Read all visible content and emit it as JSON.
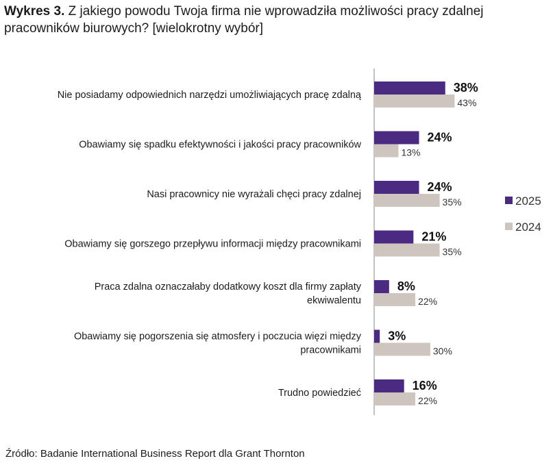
{
  "title": {
    "prefix": "Wykres 3.",
    "text": "Z jakiego powodu Twoja firma nie wprowadziła możliwości pracy zdalnej pracowników biurowych? [wielokrotny wybór]"
  },
  "source": "Źródło: Badanie International Business Report dla Grant Thornton",
  "colors": {
    "series_2025": "#4b2a82",
    "series_2024": "#cdc5be",
    "axis": "#9a9a9a"
  },
  "chart_data": {
    "type": "bar",
    "orientation": "horizontal",
    "title": "Z jakiego powodu Twoja firma nie wprowadziła możliwości pracy zdalnej pracowników biurowych? [wielokrotny wybór]",
    "xlabel": "",
    "ylabel": "",
    "xlim": [
      0,
      100
    ],
    "grid": false,
    "legend_position": "right",
    "categories": [
      [
        "Nie posiadamy odpowiednich narzędzi umożliwiających pracę zdalną"
      ],
      [
        "Obawiamy się spadku efektywności i jakości pracy pracowników"
      ],
      [
        "Nasi pracownicy nie wyrażali chęci pracy zdalnej"
      ],
      [
        "Obawiamy się gorszego przepływu informacji między pracownikami"
      ],
      [
        "Praca zdalna oznaczałaby dodatkowy koszt dla firmy zapłaty",
        "ekwiwalentu"
      ],
      [
        "Obawiamy się pogorszenia się atmosfery i poczucia więzi między",
        "pracownikami"
      ],
      [
        "Trudno powiedzieć"
      ]
    ],
    "series": [
      {
        "name": "2025",
        "values": [
          38,
          24,
          24,
          21,
          8,
          3,
          16
        ],
        "labels": [
          "38%",
          "24%",
          "24%",
          "21%",
          "8%",
          "3%",
          "16%"
        ]
      },
      {
        "name": "2024",
        "values": [
          43,
          13,
          35,
          35,
          22,
          30,
          22
        ],
        "labels": [
          "43%",
          "13%",
          "35%",
          "35%",
          "22%",
          "30%",
          "22%"
        ]
      }
    ]
  }
}
